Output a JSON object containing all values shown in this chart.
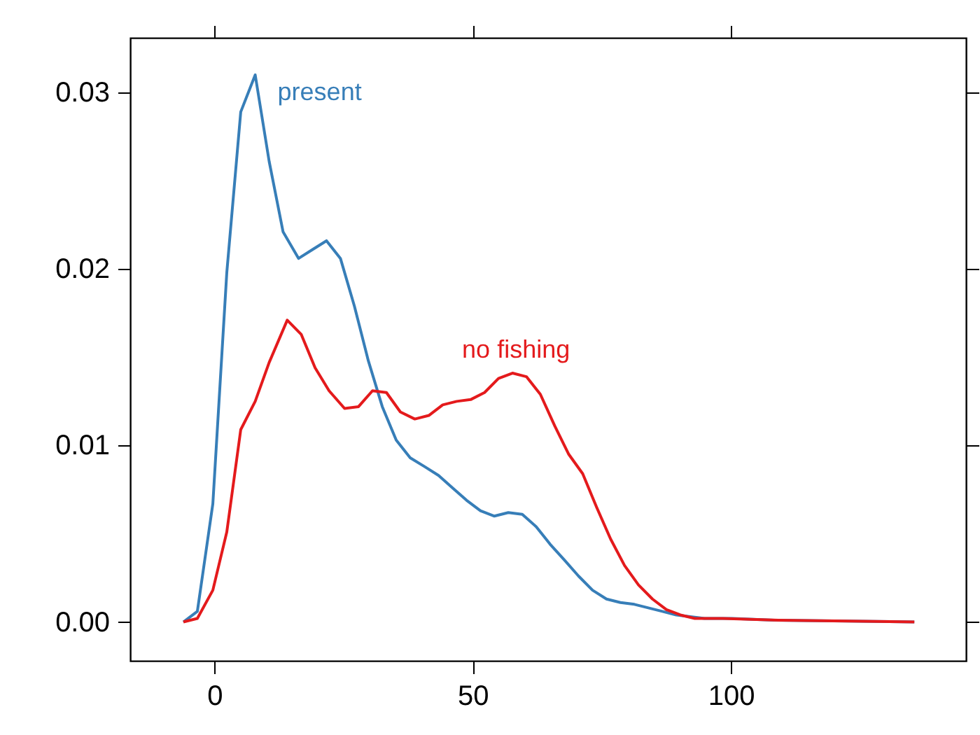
{
  "chart_data": {
    "type": "line",
    "xlim": [
      -16.3,
      145.5
    ],
    "ylim": [
      -0.0022,
      0.0331
    ],
    "xticks": [
      0,
      50,
      100
    ],
    "yticks": [
      {
        "value": 0,
        "label": "0.00"
      },
      {
        "value": 0.01,
        "label": "0.01"
      },
      {
        "value": 0.02,
        "label": "0.02"
      },
      {
        "value": 0.03,
        "label": "0.03"
      }
    ],
    "grid": false,
    "marker": "none",
    "line_style": "solid",
    "series": [
      {
        "color": "#377eb8",
        "x": [
          -6.0,
          -3.3,
          -0.3,
          2.4,
          5.1,
          7.9,
          10.6,
          13.3,
          16.3,
          19.0,
          21.7,
          24.4,
          27.1,
          29.8,
          32.5,
          35.2,
          37.9,
          40.7,
          43.4,
          46.1,
          48.8,
          51.5,
          54.2,
          56.9,
          59.6,
          62.3,
          65.0,
          67.8,
          70.5,
          73.2,
          75.9,
          78.6,
          81.3,
          84.0,
          86.7,
          89.4,
          94.9,
          100.3,
          108.4,
          135.5
        ],
        "values": [
          0,
          0.0006,
          0.0067,
          0.0198,
          0.0289,
          0.031,
          0.0261,
          0.0221,
          0.0206,
          0.0211,
          0.0216,
          0.0206,
          0.0179,
          0.0148,
          0.0122,
          0.0103,
          0.0093,
          0.0088,
          0.0083,
          0.0076,
          0.0069,
          0.0063,
          0.006,
          0.0062,
          0.0061,
          0.0054,
          0.0044,
          0.0035,
          0.0026,
          0.0018,
          0.0013,
          0.0011,
          0.001,
          0.0008,
          0.0006,
          0.0004,
          0.0002,
          0.0002,
          0.0001,
          0
        ]
      },
      {
        "color": "#e41a1c",
        "x": [
          -6.0,
          -3.3,
          -0.3,
          2.4,
          5.1,
          7.9,
          10.6,
          14.1,
          16.8,
          19.5,
          22.2,
          25.2,
          27.9,
          30.6,
          33.3,
          36.0,
          38.8,
          41.5,
          44.2,
          46.9,
          49.6,
          52.3,
          55.0,
          57.7,
          60.4,
          63.1,
          65.9,
          68.6,
          71.3,
          74.0,
          76.7,
          79.4,
          82.1,
          84.8,
          87.5,
          90.2,
          93.0,
          98.4,
          109.2,
          135.5
        ],
        "values": [
          0,
          0.0002,
          0.0018,
          0.0051,
          0.0109,
          0.0125,
          0.0147,
          0.0171,
          0.0163,
          0.0144,
          0.0131,
          0.0121,
          0.0122,
          0.0131,
          0.013,
          0.0119,
          0.0115,
          0.0117,
          0.0123,
          0.0125,
          0.0126,
          0.013,
          0.0138,
          0.0141,
          0.0139,
          0.0129,
          0.0111,
          0.0095,
          0.0084,
          0.0065,
          0.0047,
          0.0032,
          0.0021,
          0.0013,
          0.0007,
          0.0004,
          0.0002,
          0.0002,
          0.0001,
          0
        ]
      }
    ],
    "annotations": [
      {
        "text": "present",
        "x": 7.9,
        "y": 0.031
      },
      {
        "text": "no fishing",
        "x": 57.7,
        "y": 0.0141
      }
    ]
  }
}
